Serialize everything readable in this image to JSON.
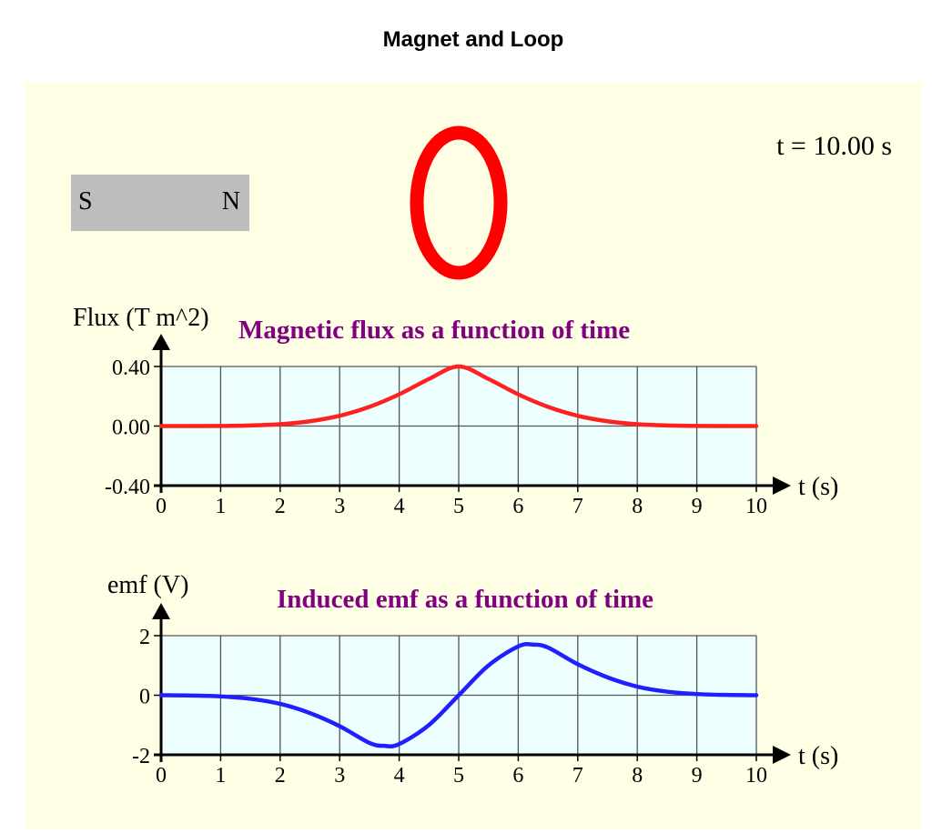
{
  "page_title": "Magnet and Loop",
  "magnet": {
    "left_pole": "S",
    "right_pole": "N",
    "color": "#bdbdbd"
  },
  "loop": {
    "color": "#ff0000"
  },
  "readout": {
    "label": "t = 10.00 s"
  },
  "colors": {
    "panel": "#ffffe6",
    "plot_bg": "#eeffff",
    "grid": "#555555",
    "flux_curve": "#ff2020",
    "emf_curve": "#2020ff",
    "chart_title": "#800080"
  },
  "chart_data": [
    {
      "type": "line",
      "title": "Magnetic flux as a function of time",
      "xlabel": "t (s)",
      "ylabel": "Flux (T m^2)",
      "xlim": [
        0,
        10
      ],
      "ylim": [
        -0.4,
        0.4
      ],
      "x_ticks": [
        "0",
        "1",
        "2",
        "3",
        "4",
        "5",
        "6",
        "7",
        "8",
        "9",
        "10"
      ],
      "y_ticks": [
        "0.40",
        "0.00",
        "-0.40"
      ],
      "grid": true,
      "series": [
        {
          "x": [
            0,
            1,
            1.5,
            2,
            2.5,
            3,
            3.5,
            4,
            4.5,
            5,
            5.5,
            6,
            6.5,
            7,
            7.5,
            8,
            8.5,
            9,
            10
          ],
          "y": [
            0,
            0.001,
            0.004,
            0.012,
            0.032,
            0.069,
            0.129,
            0.213,
            0.316,
            0.4,
            0.316,
            0.213,
            0.129,
            0.069,
            0.032,
            0.012,
            0.004,
            0.001,
            0
          ]
        }
      ]
    },
    {
      "type": "line",
      "title": "Induced emf as a function of time",
      "xlabel": "t (s)",
      "ylabel": "emf (V)",
      "xlim": [
        0,
        10
      ],
      "ylim": [
        -2,
        2
      ],
      "x_ticks": [
        "0",
        "1",
        "2",
        "3",
        "4",
        "5",
        "6",
        "7",
        "8",
        "9",
        "10"
      ],
      "y_ticks": [
        "2",
        "0",
        "-2"
      ],
      "grid": true,
      "series": [
        {
          "x": [
            0,
            0.5,
            1,
            1.5,
            2,
            2.5,
            3,
            3.5,
            3.75,
            4,
            4.5,
            5,
            5.5,
            6,
            6.25,
            6.5,
            7,
            7.5,
            8,
            8.5,
            9,
            9.5,
            10
          ],
          "y": [
            0,
            -0.01,
            -0.04,
            -0.12,
            -0.29,
            -0.6,
            -1.04,
            -1.6,
            -1.7,
            -1.64,
            -1.0,
            0,
            1.0,
            1.64,
            1.7,
            1.6,
            1.04,
            0.6,
            0.29,
            0.12,
            0.04,
            0.01,
            0
          ]
        }
      ]
    }
  ]
}
